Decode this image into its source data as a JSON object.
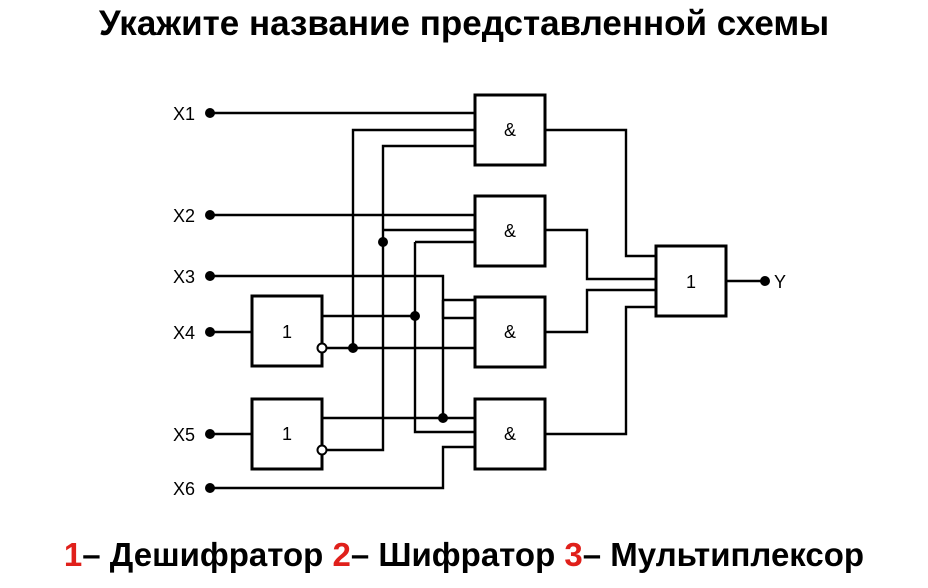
{
  "title": "Укажите название представленной схемы",
  "inputs": [
    "X1",
    "X2",
    "X3",
    "X4",
    "X5",
    "X6"
  ],
  "output": "Y",
  "gates": {
    "and": "&",
    "not": "1",
    "or": "1"
  },
  "answers": [
    {
      "number": "1",
      "text": "– Дешифратор "
    },
    {
      "number": "2",
      "text": "– Шифратор "
    },
    {
      "number": "3",
      "text": "– Мультиплексор"
    }
  ],
  "colors": {
    "answer_number": "#e0201b",
    "text": "#000000"
  }
}
